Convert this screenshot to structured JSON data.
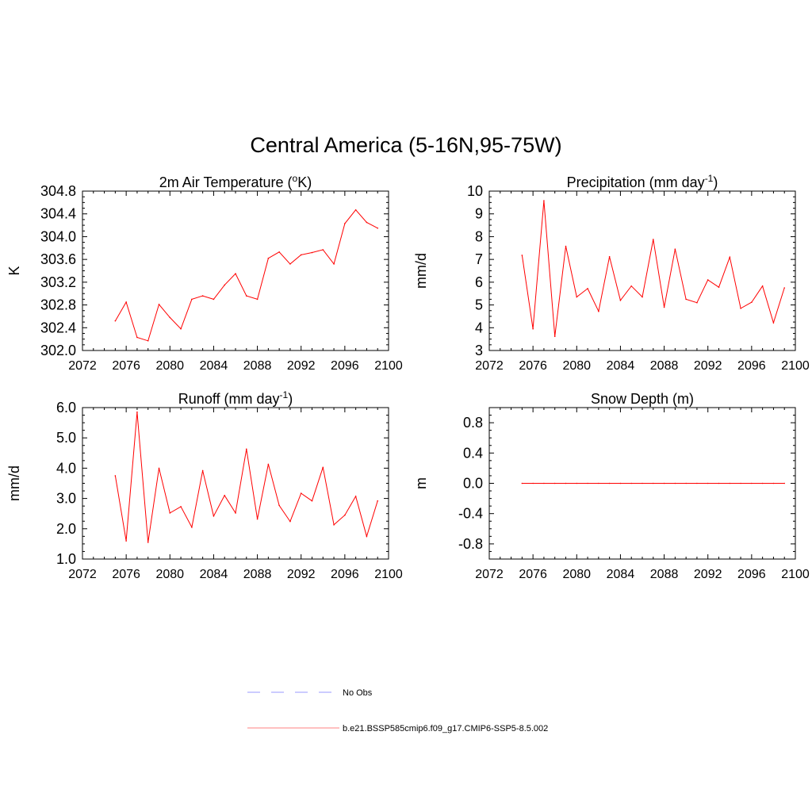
{
  "title": "Central America (5-16N,95-75W)",
  "chart_data": [
    {
      "type": "line",
      "title": "2m Air Temperature (°K)",
      "title_parts": {
        "pre": "2m Air Temperature (",
        "sup": "o",
        "post": "K)"
      },
      "ylabel": "K",
      "xlim": [
        2072,
        2100
      ],
      "ylim": [
        302.0,
        304.8
      ],
      "xticks": [
        2072,
        2076,
        2080,
        2084,
        2088,
        2092,
        2096,
        2100
      ],
      "yticks": [
        "302.0",
        "302.4",
        "302.8",
        "303.2",
        "303.6",
        "304.0",
        "304.4",
        "304.8"
      ],
      "x": [
        2075,
        2076,
        2077,
        2078,
        2079,
        2080,
        2081,
        2082,
        2083,
        2084,
        2085,
        2086,
        2087,
        2088,
        2089,
        2090,
        2091,
        2092,
        2093,
        2094,
        2095,
        2096,
        2097,
        2098,
        2099
      ],
      "series": [
        {
          "name": "b.e21.BSSP585cmip6.f09_g17.CMIP6-SSP5-8.5.002",
          "values": [
            302.52,
            302.85,
            302.23,
            302.17,
            302.81,
            302.58,
            302.38,
            302.9,
            302.96,
            302.9,
            303.15,
            303.35,
            302.96,
            302.9,
            303.62,
            303.73,
            303.52,
            303.68,
            303.72,
            303.77,
            303.52,
            304.23,
            304.47,
            304.25,
            304.15
          ]
        }
      ]
    },
    {
      "type": "line",
      "title": "Precipitation (mm day-1)",
      "title_parts": {
        "pre": "Precipitation (mm day",
        "sup": "-1",
        "post": ")"
      },
      "ylabel": "mm/d",
      "xlim": [
        2072,
        2100
      ],
      "ylim": [
        3,
        10
      ],
      "xticks": [
        2072,
        2076,
        2080,
        2084,
        2088,
        2092,
        2096,
        2100
      ],
      "yticks": [
        "3",
        "4",
        "5",
        "6",
        "7",
        "8",
        "9",
        "10"
      ],
      "x": [
        2075,
        2076,
        2077,
        2078,
        2079,
        2080,
        2081,
        2082,
        2083,
        2084,
        2085,
        2086,
        2087,
        2088,
        2089,
        2090,
        2091,
        2092,
        2093,
        2094,
        2095,
        2096,
        2097,
        2098,
        2099
      ],
      "series": [
        {
          "name": "b.e21.BSSP585cmip6.f09_g17.CMIP6-SSP5-8.5.002",
          "values": [
            7.18,
            3.95,
            9.58,
            3.62,
            7.58,
            5.35,
            5.72,
            4.72,
            7.12,
            5.2,
            5.83,
            5.35,
            7.88,
            4.9,
            7.45,
            5.25,
            5.1,
            6.1,
            5.78,
            7.1,
            4.85,
            5.12,
            5.83,
            4.22,
            5.75
          ]
        }
      ]
    },
    {
      "type": "line",
      "title": "Runoff (mm day-1)",
      "title_parts": {
        "pre": "Runoff (mm day",
        "sup": "-1",
        "post": ")"
      },
      "ylabel": "mm/d",
      "xlim": [
        2072,
        2100
      ],
      "ylim": [
        1.0,
        6.0
      ],
      "xticks": [
        2072,
        2076,
        2080,
        2084,
        2088,
        2092,
        2096,
        2100
      ],
      "yticks": [
        "1.0",
        "2.0",
        "3.0",
        "4.0",
        "5.0",
        "6.0"
      ],
      "x": [
        2075,
        2076,
        2077,
        2078,
        2079,
        2080,
        2081,
        2082,
        2083,
        2084,
        2085,
        2086,
        2087,
        2088,
        2089,
        2090,
        2091,
        2092,
        2093,
        2094,
        2095,
        2096,
        2097,
        2098,
        2099
      ],
      "series": [
        {
          "name": "b.e21.BSSP585cmip6.f09_g17.CMIP6-SSP5-8.5.002",
          "values": [
            3.75,
            1.6,
            5.85,
            1.55,
            4.0,
            2.52,
            2.73,
            2.05,
            3.92,
            2.42,
            3.1,
            2.52,
            4.63,
            2.32,
            4.13,
            2.77,
            2.24,
            3.17,
            2.92,
            4.03,
            2.13,
            2.45,
            3.07,
            1.75,
            2.92
          ]
        }
      ]
    },
    {
      "type": "line",
      "title": "Snow Depth (m)",
      "title_parts": {
        "pre": "Snow Depth (m)",
        "sup": "",
        "post": ""
      },
      "ylabel": "m",
      "xlim": [
        2072,
        2100
      ],
      "ylim": [
        -1.0,
        1.0
      ],
      "xticks": [
        2072,
        2076,
        2080,
        2084,
        2088,
        2092,
        2096,
        2100
      ],
      "yticks": [
        "-0.8",
        "-0.4",
        "0.0",
        "0.4",
        "0.8"
      ],
      "x": [
        2075,
        2076,
        2077,
        2078,
        2079,
        2080,
        2081,
        2082,
        2083,
        2084,
        2085,
        2086,
        2087,
        2088,
        2089,
        2090,
        2091,
        2092,
        2093,
        2094,
        2095,
        2096,
        2097,
        2098,
        2099
      ],
      "series": [
        {
          "name": "b.e21.BSSP585cmip6.f09_g17.CMIP6-SSP5-8.5.002",
          "values": [
            0,
            0,
            0,
            0,
            0,
            0,
            0,
            0,
            0,
            0,
            0,
            0,
            0,
            0,
            0,
            0,
            0,
            0,
            0,
            0,
            0,
            0,
            0,
            0,
            0
          ]
        }
      ]
    }
  ],
  "legend": [
    {
      "label": "No Obs",
      "color": "#9999ff",
      "style": "dashed"
    },
    {
      "label": "b.e21.BSSP585cmip6.f09_g17.CMIP6-SSP5-8.5.002",
      "color": "#ff8080",
      "style": "solid"
    }
  ],
  "line_color": "#ff0000"
}
